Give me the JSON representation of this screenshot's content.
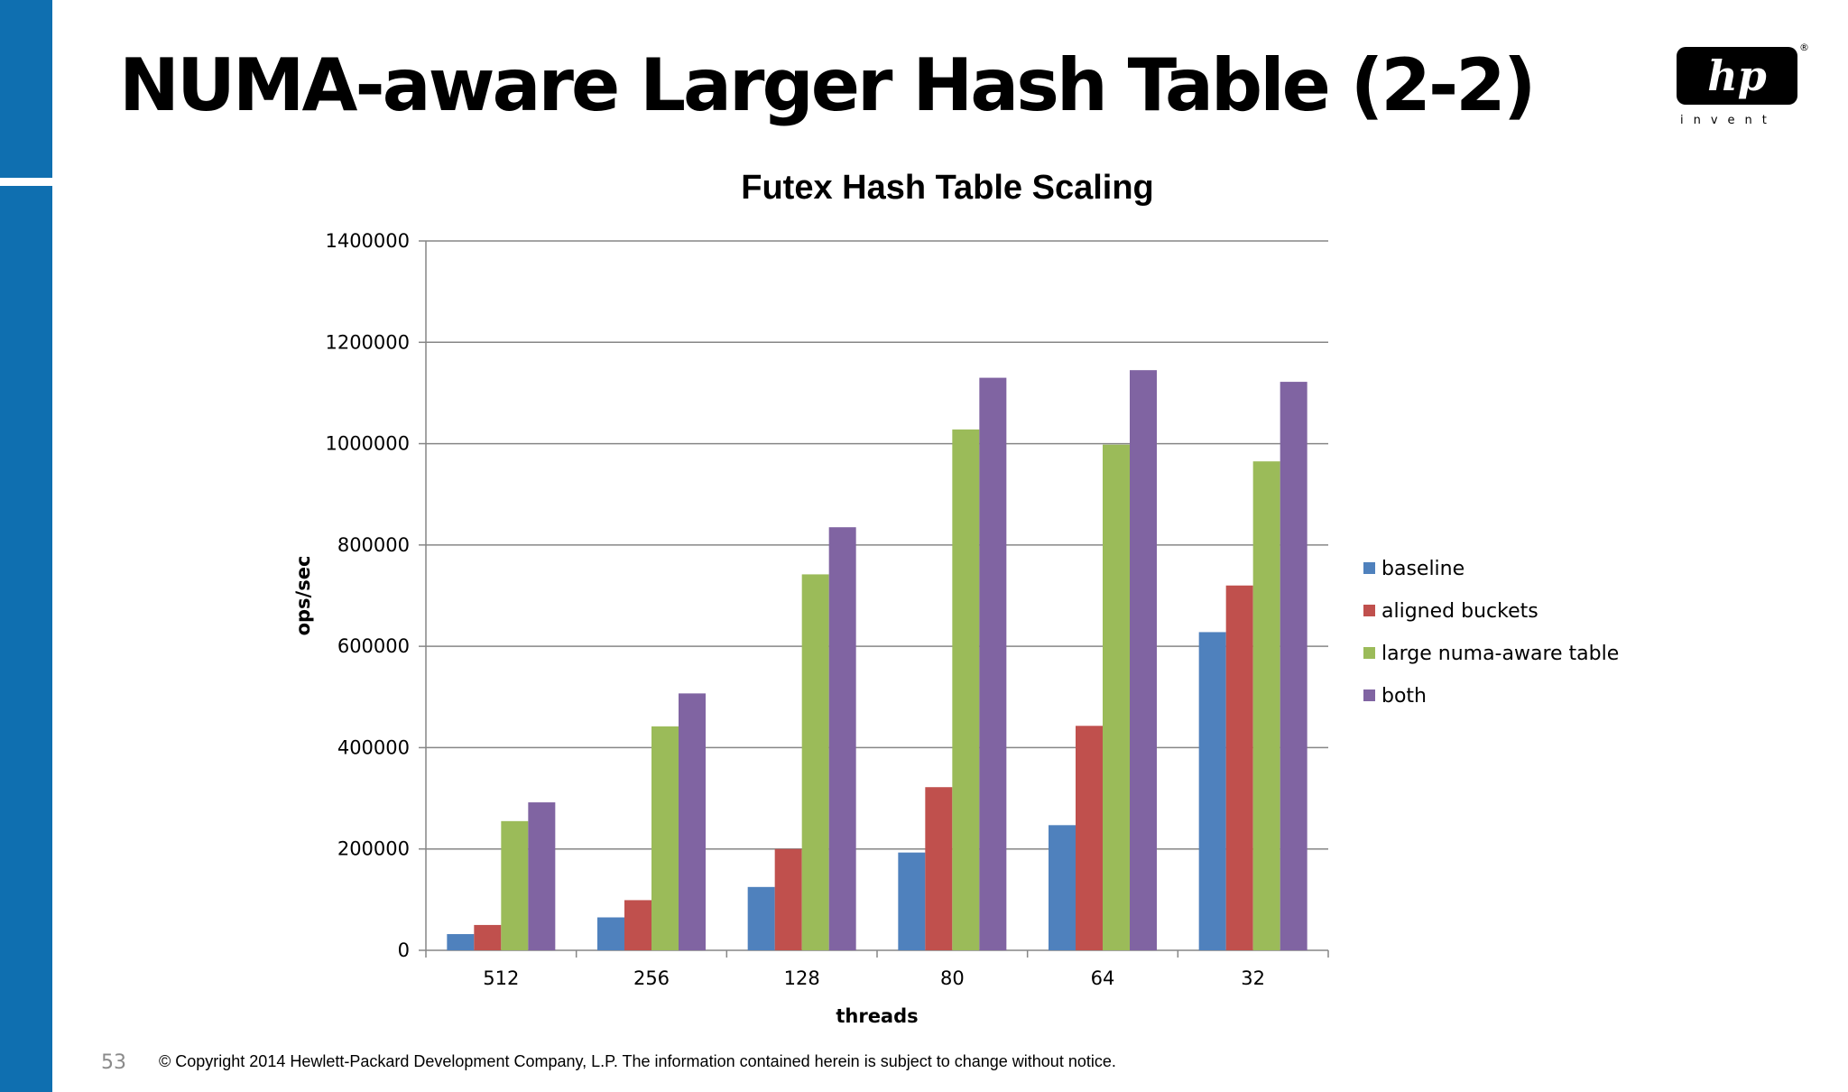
{
  "slide": {
    "title": "NUMA-aware Larger Hash Table (2-2)",
    "page_number": "53",
    "copyright": "© Copyright 2014 Hewlett-Packard Development Company, L.P.  The information contained herein is subject to change without notice."
  },
  "logo": {
    "mark": "hp",
    "registered": "®",
    "tagline": "invent"
  },
  "colors": {
    "side_bar": "#0f6fb0",
    "gridline": "#868686",
    "axis": "#868686"
  },
  "chart_data": {
    "type": "bar",
    "title": "Futex Hash Table Scaling",
    "xlabel": "threads",
    "ylabel": "ops/sec",
    "ylim": [
      0,
      1400000
    ],
    "yticks": [
      0,
      200000,
      400000,
      600000,
      800000,
      1000000,
      1200000,
      1400000
    ],
    "grid": true,
    "legend_position": "right",
    "categories": [
      "512",
      "256",
      "128",
      "80",
      "64",
      "32"
    ],
    "series": [
      {
        "name": "baseline",
        "color": "#4f81bd",
        "values": [
          32000,
          65000,
          125000,
          193000,
          247000,
          628000
        ]
      },
      {
        "name": "aligned buckets",
        "color": "#c0504d",
        "values": [
          50000,
          99000,
          200000,
          322000,
          443000,
          720000
        ]
      },
      {
        "name": "large numa-aware table",
        "color": "#9bbb59",
        "values": [
          255000,
          442000,
          742000,
          1028000,
          998000,
          965000
        ]
      },
      {
        "name": "both",
        "color": "#8064a2",
        "values": [
          292000,
          507000,
          835000,
          1130000,
          1145000,
          1122000
        ]
      }
    ]
  }
}
